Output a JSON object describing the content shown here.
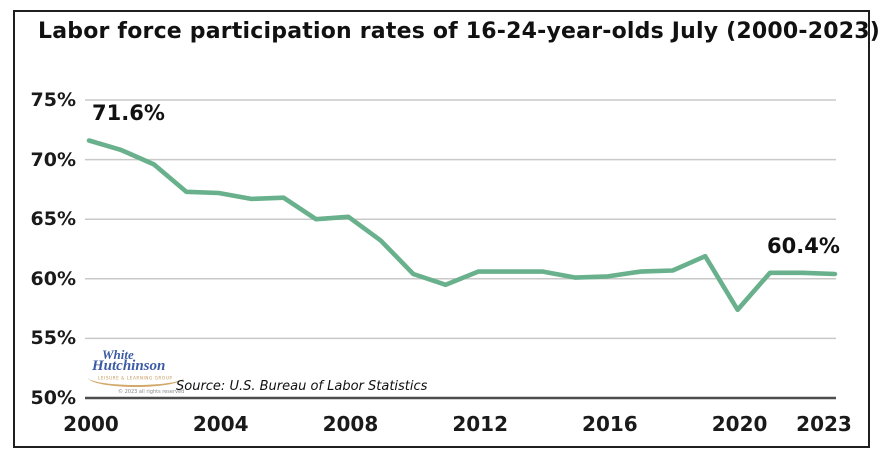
{
  "window": {
    "background": "#ffffff",
    "border_color": "#1f1f1f"
  },
  "chart_data": {
    "type": "line",
    "title": "Labor force participation rates of 16-24-year-olds July (2000-2023)",
    "x": [
      2000,
      2001,
      2002,
      2003,
      2004,
      2005,
      2006,
      2007,
      2008,
      2009,
      2010,
      2011,
      2012,
      2013,
      2014,
      2015,
      2016,
      2017,
      2018,
      2019,
      2020,
      2021,
      2022,
      2023
    ],
    "values": [
      71.6,
      70.8,
      69.6,
      67.3,
      67.2,
      66.7,
      66.8,
      65.0,
      65.2,
      63.2,
      60.4,
      59.5,
      60.6,
      60.6,
      60.6,
      60.1,
      60.2,
      60.6,
      60.7,
      61.9,
      57.4,
      60.5,
      60.5,
      60.4
    ],
    "ylim": [
      50,
      75
    ],
    "xlim": [
      2000,
      2023
    ],
    "grid": true,
    "series_color": "#69b08c",
    "gridline_color": "#c9c9c9",
    "axis_color": "#4d4d4d",
    "y_tick_labels": [
      "75%",
      "70%",
      "65%",
      "60%",
      "55%",
      "50%"
    ],
    "y_tick_values": [
      75,
      70,
      65,
      60,
      55,
      50
    ],
    "x_tick_labels": [
      "2000",
      "2004",
      "2008",
      "2012",
      "2016",
      "2020",
      "2023"
    ],
    "x_tick_years": [
      2000,
      2004,
      2008,
      2012,
      2016,
      2020,
      2023
    ],
    "annotations": [
      {
        "text": "71.6%",
        "year": 2000,
        "value": 71.6
      },
      {
        "text": "60.4%",
        "year": 2023,
        "value": 60.4
      }
    ]
  },
  "annotation_labels": {
    "start": "71.6%",
    "end": "60.4%"
  },
  "source": {
    "text": "Source: U.S. Bureau of Labor Statistics"
  },
  "logo": {
    "line1": "White",
    "line2": "Hutchinson",
    "tagline": "LEISURE & LEARNING GROUP",
    "copyright": "© 2023 all rights reserved",
    "blue": "#3c5ba4",
    "tan": "#d2a96a"
  }
}
